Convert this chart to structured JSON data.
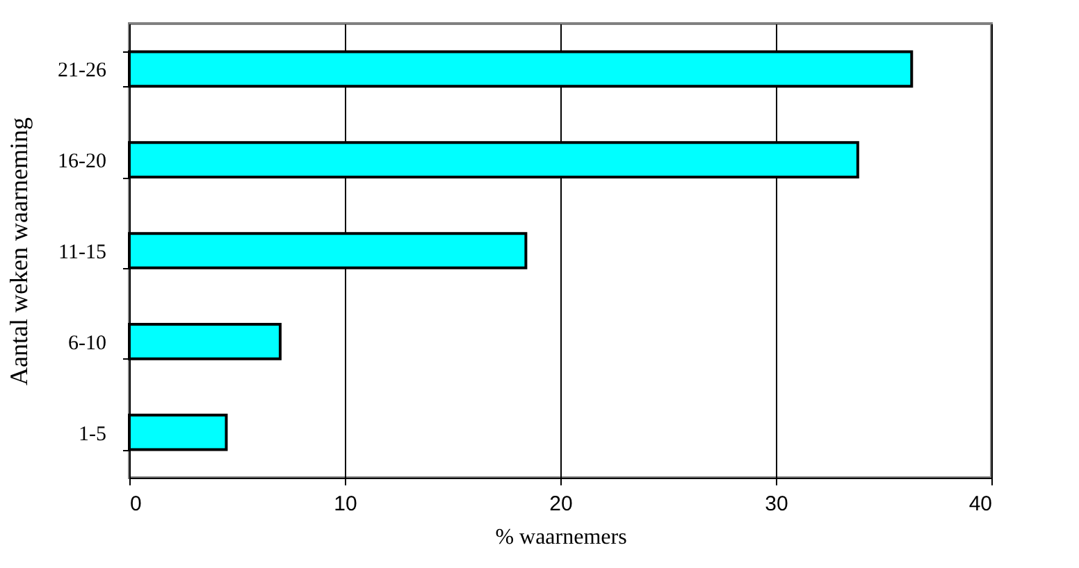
{
  "chart_data": {
    "type": "bar",
    "orientation": "horizontal",
    "xlabel": "% waarnemers",
    "ylabel": "Aantal weken waarneming",
    "categories": [
      "21-26",
      "16-20",
      "11-15",
      "6-10",
      "1-5"
    ],
    "values": [
      36.3,
      33.8,
      18.4,
      7.0,
      4.5
    ],
    "color": "#00ffff",
    "xlim": [
      0,
      40
    ],
    "xticks": [
      0,
      10,
      20,
      30,
      40
    ],
    "grid": "x"
  }
}
